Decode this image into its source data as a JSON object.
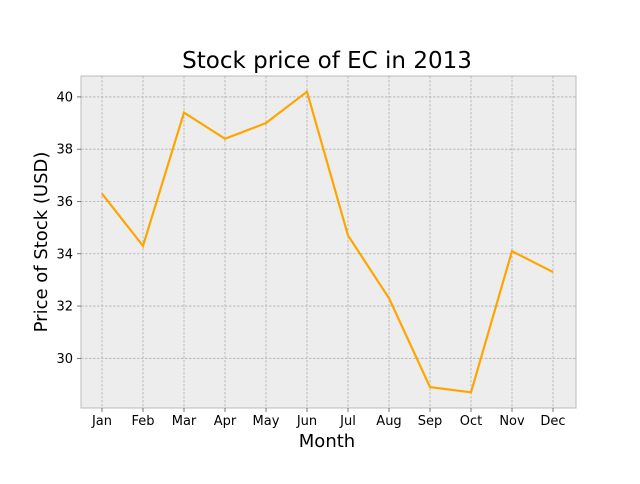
{
  "chart_data": {
    "type": "line",
    "title": "Stock price of EC in 2013",
    "xlabel": "Month",
    "ylabel": "Price of Stock (USD)",
    "categories": [
      "Jan",
      "Feb",
      "Mar",
      "Apr",
      "May",
      "Jun",
      "Jul",
      "Aug",
      "Sep",
      "Oct",
      "Nov",
      "Dec"
    ],
    "series": [
      {
        "values": [
          36.3,
          34.3,
          39.4,
          38.4,
          39.0,
          40.2,
          34.7,
          32.3,
          28.9,
          28.7,
          34.1,
          33.3
        ]
      }
    ],
    "ylim": [
      28.1,
      40.8
    ],
    "yticks": [
      30,
      32,
      34,
      36,
      38,
      40
    ],
    "ytick_labels": [
      "30",
      "32",
      "34",
      "36",
      "38",
      "40"
    ],
    "grid": true,
    "colors": {
      "line": "#FFA500",
      "plot_background": "#EDEDED",
      "plot_border": "#BBBBBB",
      "grid": "#B0B0B0"
    }
  }
}
